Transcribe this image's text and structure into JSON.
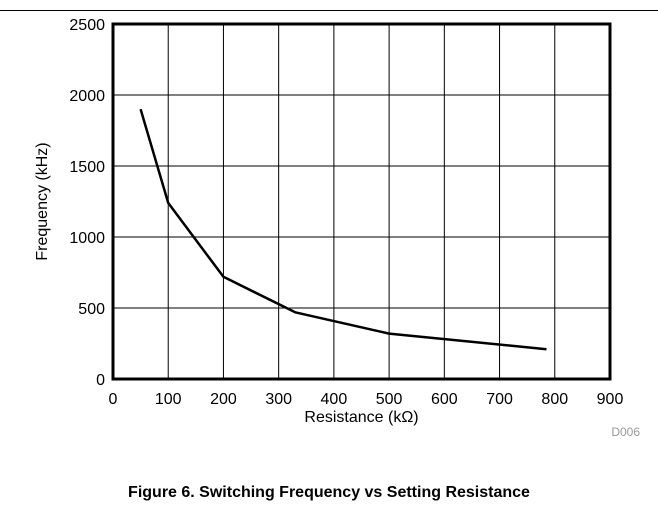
{
  "chart_data": {
    "type": "line",
    "xlabel": "Resistance (kΩ)",
    "ylabel": "Frequency (kHz)",
    "xlim": [
      0,
      900
    ],
    "ylim": [
      0,
      2500
    ],
    "xticks": [
      0,
      100,
      200,
      300,
      400,
      500,
      600,
      700,
      800,
      900
    ],
    "yticks": [
      0,
      500,
      1000,
      1500,
      2000,
      2500
    ],
    "grid": true,
    "legend": "none",
    "line_color": "#000000",
    "series": [
      {
        "x": [
          50,
          100,
          200,
          330,
          500,
          785
        ],
        "y": [
          1900,
          1240,
          720,
          470,
          320,
          210
        ]
      }
    ],
    "annotation": "D006"
  },
  "figure": {
    "caption": "Figure 6. Switching Frequency vs Setting Resistance"
  }
}
